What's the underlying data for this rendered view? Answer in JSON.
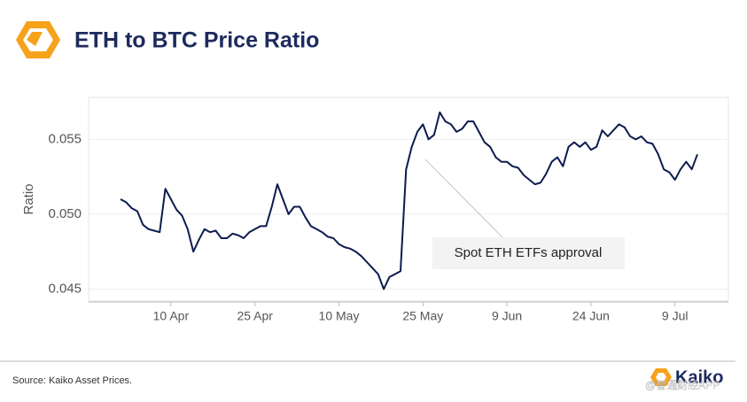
{
  "chart_data": {
    "type": "line",
    "title": "ETH to BTC Price Ratio",
    "y_label": "Ratio",
    "source": "Source: Kaiko Asset Prices.",
    "brand": "Kaiko",
    "watermark": "@智通财经APP",
    "annotation": "Spot ETH ETFs approval",
    "color": "#0d1b4f",
    "grid": true,
    "ylim": [
      0.0442,
      0.0578
    ],
    "yticks": [
      0.045,
      {
        "value": 0.05,
        "label": "0.050"
      },
      0.055
    ],
    "categories": [
      null,
      null,
      null,
      null,
      null,
      null,
      null,
      null,
      null,
      "10 Apr",
      null,
      null,
      null,
      null,
      null,
      null,
      null,
      null,
      null,
      null,
      null,
      null,
      null,
      null,
      "25 Apr",
      null,
      null,
      null,
      null,
      null,
      null,
      null,
      null,
      null,
      null,
      null,
      null,
      null,
      null,
      "10 May",
      null,
      null,
      null,
      null,
      null,
      null,
      null,
      null,
      null,
      null,
      null,
      null,
      null,
      null,
      "25 May",
      null,
      null,
      null,
      null,
      null,
      null,
      null,
      null,
      null,
      null,
      null,
      null,
      null,
      null,
      "9 Jun",
      null,
      null,
      null,
      null,
      null,
      null,
      null,
      null,
      null,
      null,
      null,
      null,
      null,
      null,
      "24 Jun",
      null,
      null,
      null,
      null,
      null,
      null,
      null,
      null,
      null,
      null,
      null,
      null,
      null,
      null,
      "9 Jul",
      null,
      null,
      null,
      null
    ],
    "values": [
      0.051,
      0.0508,
      0.0504,
      0.0502,
      0.0493,
      0.049,
      0.0489,
      0.0488,
      0.0517,
      0.051,
      0.0503,
      0.0499,
      0.049,
      0.0475,
      0.0483,
      0.049,
      0.0488,
      0.0489,
      0.0484,
      0.0484,
      0.0487,
      0.0486,
      0.0484,
      0.0488,
      0.049,
      0.0492,
      0.0492,
      0.0505,
      0.052,
      0.051,
      0.05,
      0.0505,
      0.0505,
      0.0498,
      0.0492,
      0.049,
      0.0488,
      0.0485,
      0.0484,
      0.048,
      0.0478,
      0.0477,
      0.0475,
      0.0472,
      0.0468,
      0.0464,
      0.046,
      0.045,
      0.0458,
      0.046,
      0.0462,
      0.053,
      0.0545,
      0.0555,
      0.056,
      0.055,
      0.0553,
      0.0568,
      0.0562,
      0.056,
      0.0555,
      0.0557,
      0.0562,
      0.0562,
      0.0555,
      0.0548,
      0.0545,
      0.0538,
      0.0535,
      0.0535,
      0.0532,
      0.0531,
      0.0526,
      0.0523,
      0.052,
      0.0521,
      0.0527,
      0.0535,
      0.0538,
      0.0532,
      0.0545,
      0.0548,
      0.0545,
      0.0548,
      0.0543,
      0.0545,
      0.0556,
      0.0552,
      0.0556,
      0.056,
      0.0558,
      0.0552,
      0.055,
      0.0552,
      0.0548,
      0.0547,
      0.054,
      0.053,
      0.0528,
      0.0523,
      0.053,
      0.0535,
      0.053,
      0.054
    ]
  }
}
